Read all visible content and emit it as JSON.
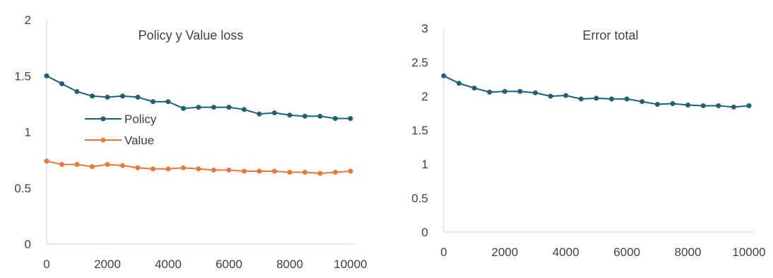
{
  "chart_data": [
    {
      "type": "line",
      "title": "Policy y Value loss",
      "xlabel": "",
      "ylabel": "",
      "x": [
        0,
        500,
        1000,
        1500,
        2000,
        2500,
        3000,
        3500,
        4000,
        4500,
        5000,
        5500,
        6000,
        6500,
        7000,
        7500,
        8000,
        8500,
        9000,
        9500,
        10000
      ],
      "xticks": [
        0,
        2000,
        4000,
        6000,
        8000,
        10000
      ],
      "yticks": [
        0,
        0.5,
        1,
        1.5,
        2
      ],
      "ytick_labels": [
        "0",
        "0.5",
        "1",
        "1.5",
        "2"
      ],
      "xlim": [
        0,
        10000
      ],
      "ylim": [
        0,
        2
      ],
      "grid": false,
      "legend_position": "center-left",
      "series": [
        {
          "name": "Policy",
          "color": "#1f5f7a",
          "values": [
            1.5,
            1.43,
            1.36,
            1.32,
            1.31,
            1.32,
            1.31,
            1.27,
            1.27,
            1.21,
            1.22,
            1.22,
            1.22,
            1.2,
            1.16,
            1.17,
            1.15,
            1.14,
            1.14,
            1.12,
            1.12
          ]
        },
        {
          "name": "Value",
          "color": "#e8783a",
          "values": [
            0.74,
            0.71,
            0.71,
            0.69,
            0.71,
            0.7,
            0.68,
            0.67,
            0.67,
            0.68,
            0.67,
            0.66,
            0.66,
            0.65,
            0.65,
            0.65,
            0.64,
            0.64,
            0.63,
            0.64,
            0.65
          ]
        }
      ]
    },
    {
      "type": "line",
      "title": "Error total",
      "xlabel": "",
      "ylabel": "",
      "x": [
        0,
        500,
        1000,
        1500,
        2000,
        2500,
        3000,
        3500,
        4000,
        4500,
        5000,
        5500,
        6000,
        6500,
        7000,
        7500,
        8000,
        8500,
        9000,
        9500,
        10000
      ],
      "xticks": [
        0,
        2000,
        4000,
        6000,
        8000,
        10000
      ],
      "yticks": [
        0,
        0.5,
        1,
        1.5,
        2,
        2.5,
        3
      ],
      "ytick_labels": [
        "0",
        "0.5",
        "1",
        "1.5",
        "2",
        "2.5",
        "3"
      ],
      "xlim": [
        0,
        10000
      ],
      "ylim": [
        0,
        3
      ],
      "grid": false,
      "series": [
        {
          "color": "#1f5f7a",
          "values": [
            2.3,
            2.19,
            2.12,
            2.06,
            2.07,
            2.07,
            2.05,
            2.0,
            2.01,
            1.96,
            1.97,
            1.96,
            1.96,
            1.92,
            1.88,
            1.89,
            1.87,
            1.86,
            1.86,
            1.84,
            1.86
          ]
        }
      ]
    }
  ]
}
